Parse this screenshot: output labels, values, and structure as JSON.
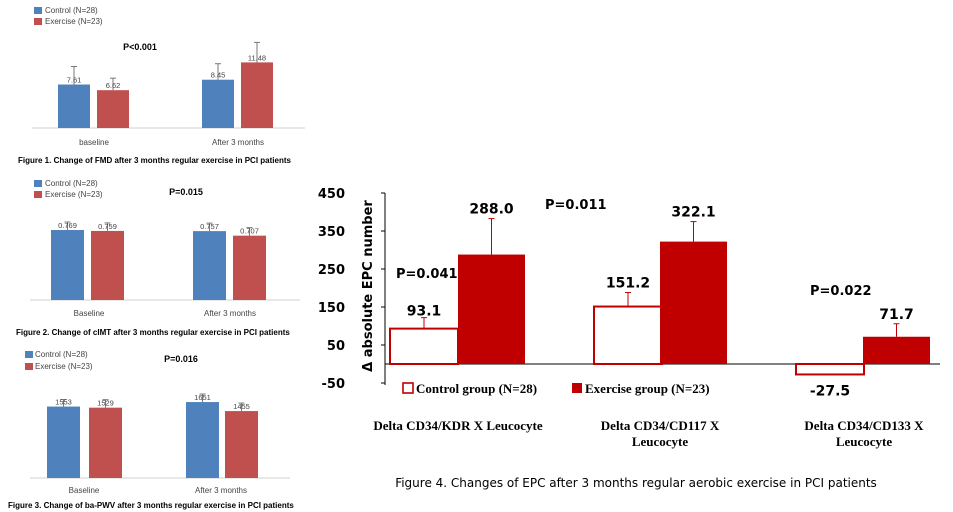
{
  "colors": {
    "control_small": "#4f81bd",
    "exercise_small": "#c0504d",
    "control_big": "#ffffff",
    "exercise_big": "#c00000",
    "big_outline": "#c00000"
  },
  "chart_data": [
    {
      "type": "bar",
      "legend": [
        "Control (N=28)",
        "Exercise (N=23)"
      ],
      "annotation": "P<0.001",
      "categories": [
        "baseline",
        "After 3 months"
      ],
      "series": [
        {
          "name": "Control (N=28)",
          "values": [
            7.61,
            8.45
          ],
          "labels": [
            "7.61",
            "8.45"
          ]
        },
        {
          "name": "Exercise (N=23)",
          "values": [
            6.62,
            11.48
          ],
          "labels": [
            "6.62",
            "11.48"
          ]
        }
      ],
      "ylim": [
        0,
        14
      ],
      "caption": "Figure 1. Change of FMD after 3 months regular exercise in PCI patients"
    },
    {
      "type": "bar",
      "legend": [
        "Control (N=28)",
        "Exercise (N=23)"
      ],
      "annotation": "P=0.015",
      "categories": [
        "Baseline",
        "After 3 months"
      ],
      "series": [
        {
          "name": "Control (N=28)",
          "values": [
            0.769,
            0.757
          ],
          "labels": [
            "0.769",
            "0.757"
          ]
        },
        {
          "name": "Exercise (N=23)",
          "values": [
            0.759,
            0.707
          ],
          "labels": [
            "0.759",
            "0.707"
          ]
        }
      ],
      "ylim": [
        0,
        1.0
      ],
      "caption": "Figure 2. Change of cIMT after 3 months regular exercise in PCI patients"
    },
    {
      "type": "bar",
      "legend": [
        "Control (N=28)",
        "Exercise (N=23)"
      ],
      "annotation": "P=0.016",
      "categories": [
        "Baseline",
        "After 3 months"
      ],
      "series": [
        {
          "name": "Control (N=28)",
          "values": [
            1553,
            1651
          ],
          "labels": [
            "1553",
            "1651"
          ]
        },
        {
          "name": "Exercise (N=23)",
          "values": [
            1529,
            1455
          ],
          "labels": [
            "1529",
            "1455"
          ]
        }
      ],
      "ylim": [
        0,
        2000
      ],
      "caption": "Figure 3. Change of ba-PWV after 3 months regular exercise in PCI patients"
    },
    {
      "type": "bar",
      "ylabel": "Δ absolute EPC number",
      "ylim": [
        -50,
        450
      ],
      "yticks": [
        "450",
        "350",
        "250",
        "150",
        "50",
        "-50"
      ],
      "ytick_values": [
        450,
        350,
        250,
        150,
        50,
        -50
      ],
      "categories": [
        "Delta CD34/KDR X Leucocyte",
        "Delta CD34/CD117 X Leucocyte",
        "Delta CD34/CD133 X Leucocyte"
      ],
      "series": [
        {
          "name": "Control group (N=28)",
          "values": [
            93.1,
            151.2,
            -27.5
          ],
          "labels": [
            "93.1",
            "151.2",
            "-27.5"
          ]
        },
        {
          "name": "Exercise group (N=23)",
          "values": [
            288.0,
            322.1,
            71.7
          ],
          "labels": [
            "288.0",
            "322.1",
            "71.7"
          ]
        }
      ],
      "annotations": [
        "P=0.041",
        "P=0.011",
        "P=0.022"
      ],
      "caption": "Figure 4. Changes of EPC after 3 months regular aerobic exercise in PCI patients"
    }
  ]
}
